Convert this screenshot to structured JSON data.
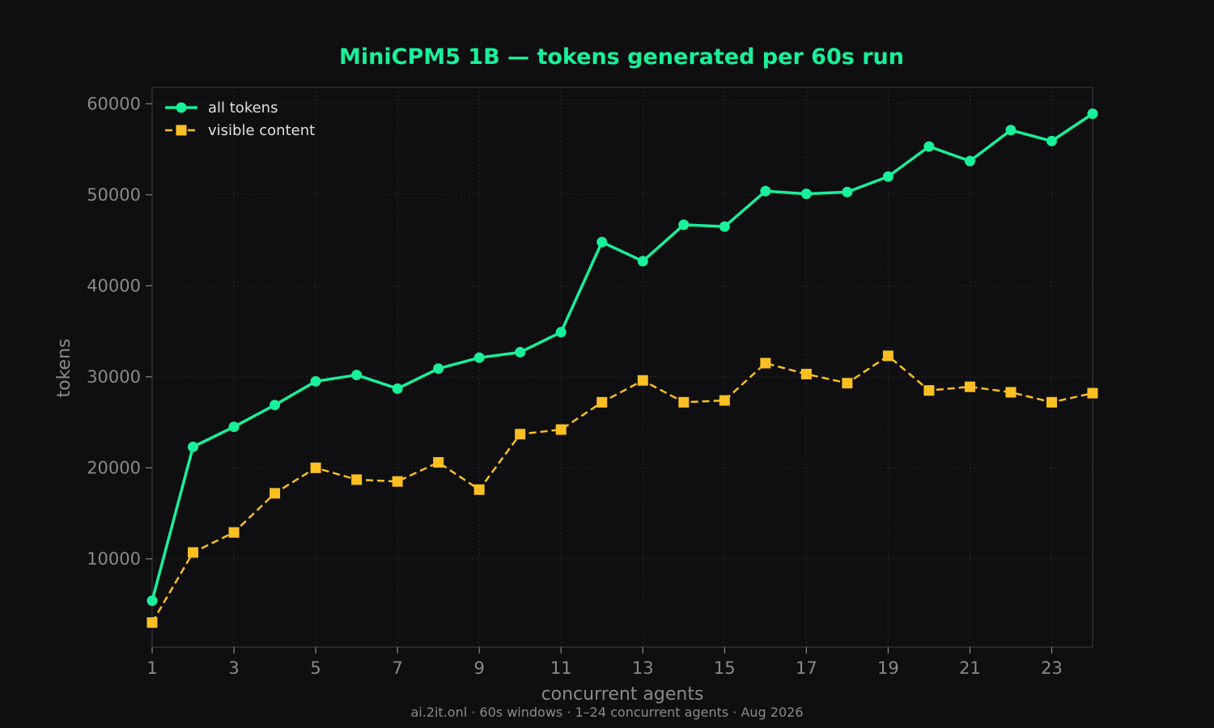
{
  "chart_data": {
    "type": "line",
    "title": "MiniCPM5 1B — tokens generated per 60s run",
    "xlabel": "concurrent agents",
    "ylabel": "tokens",
    "footer": "ai.2it.onl · 60s windows · 1–24 concurrent agents · Aug 2026",
    "x": [
      1,
      2,
      3,
      4,
      5,
      6,
      7,
      8,
      9,
      10,
      11,
      12,
      13,
      14,
      15,
      16,
      17,
      18,
      19,
      20,
      21,
      22,
      23,
      24
    ],
    "xlim": [
      1,
      24
    ],
    "ylim": [
      300,
      61800
    ],
    "xticks": [
      "1",
      "3",
      "5",
      "7",
      "9",
      "11",
      "13",
      "15",
      "17",
      "19",
      "21",
      "23"
    ],
    "yticks": [
      "10000",
      "20000",
      "30000",
      "40000",
      "50000",
      "60000"
    ],
    "grid": true,
    "legend_position": "top-left",
    "colors": {
      "background": "#0f0f11",
      "title": "#19f09a",
      "axis": "#8a8a8a",
      "grid": "#2a2a2d",
      "frame": "#2e2e31"
    },
    "series": [
      {
        "name": "all tokens",
        "color": "#19f09a",
        "marker": "circle",
        "dash": "solid",
        "values": [
          5400,
          22300,
          24500,
          26900,
          29500,
          30200,
          28700,
          30900,
          32100,
          32700,
          34900,
          44800,
          42700,
          46700,
          46500,
          50400,
          50100,
          50300,
          52000,
          55300,
          53700,
          57100,
          55900,
          58900
        ]
      },
      {
        "name": "visible content",
        "color": "#fbbf24",
        "marker": "square",
        "dash": "dashed",
        "values": [
          3000,
          10700,
          12900,
          17200,
          20000,
          18700,
          18500,
          20600,
          17600,
          23700,
          24200,
          27200,
          29600,
          27200,
          27400,
          31500,
          30300,
          29300,
          32300,
          28500,
          28900,
          28300,
          27200,
          28200
        ]
      }
    ]
  }
}
